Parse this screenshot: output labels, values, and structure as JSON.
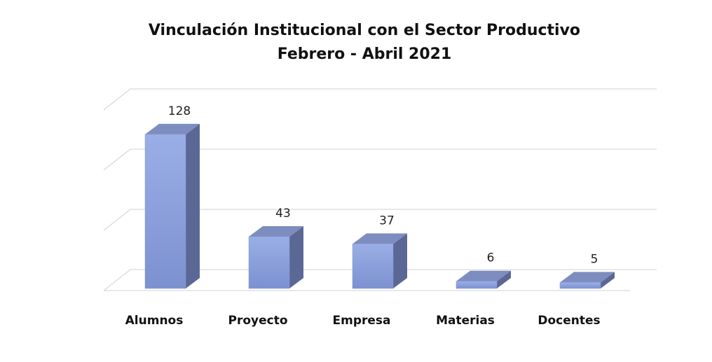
{
  "chart_data": {
    "type": "bar3d",
    "title": "Vinculación Institucional con el Sector Productivo",
    "subtitle": "Febrero - Abril 2021",
    "categories": [
      "Alumnos",
      "Proyecto",
      "Empresa",
      "Materias",
      "Docentes"
    ],
    "values": [
      128,
      43,
      37,
      6,
      5
    ],
    "color": "#8a9edb",
    "ylim": [
      0,
      150
    ],
    "yticks": [
      0,
      50,
      100,
      150
    ],
    "grid": true
  }
}
